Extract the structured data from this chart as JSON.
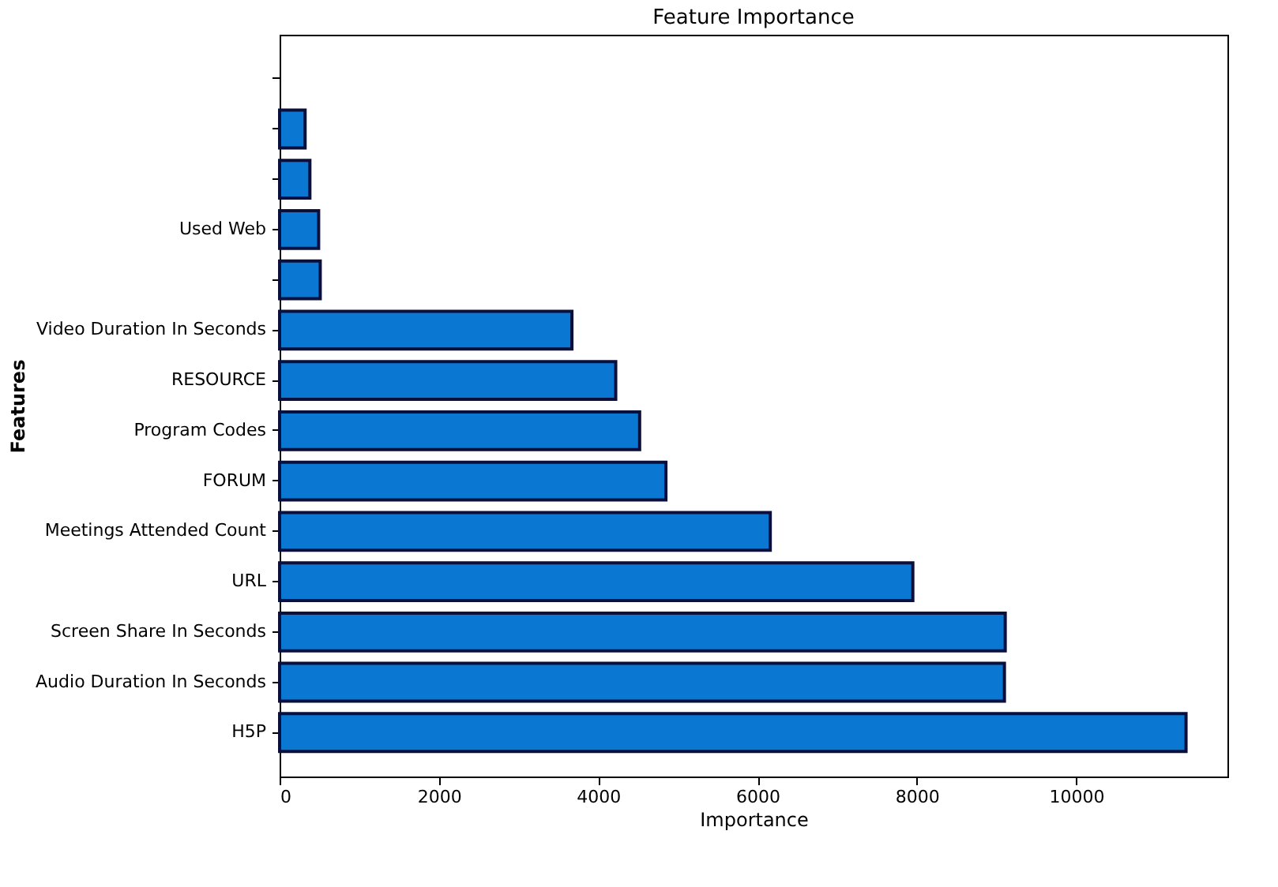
{
  "chart_data": {
    "type": "bar",
    "orientation": "horizontal",
    "title": "Feature Importance",
    "xlabel": "Importance",
    "ylabel": "Features",
    "categories": [
      null,
      null,
      null,
      "Used Web",
      null,
      "Video Duration In Seconds",
      "RESOURCE",
      "Program Codes",
      "FORUM",
      "Meetings Attended Count",
      "URL",
      "Screen Share In Seconds",
      "Audio Duration In Seconds",
      "H5P"
    ],
    "values": [
      0,
      320,
      380,
      490,
      510,
      3670,
      4220,
      4520,
      4850,
      6160,
      7950,
      9110,
      9100,
      11380
    ],
    "color": "#0a78d2",
    "xlim": [
      0,
      11900
    ],
    "xticks": [
      0,
      2000,
      4000,
      6000,
      8000,
      10000
    ],
    "grid": false
  }
}
